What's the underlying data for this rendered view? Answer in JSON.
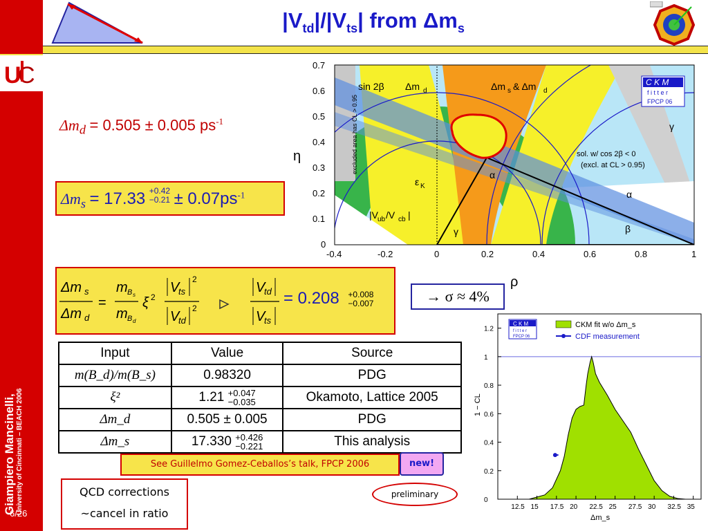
{
  "slide": {
    "title_main": "|V",
    "title_td": "td",
    "title_mid": "|/|V",
    "title_ts": "ts",
    "title_end": "| from Δm",
    "title_s": "s",
    "author": "Giampiero Mancinelli,",
    "affiliation": "University of Cincinnati – BEACH 2006",
    "page": "6/26"
  },
  "equations": {
    "dmd_label": "Δm",
    "dmd_sub": "d",
    "dmd_value": "= 0.505 ± 0.005 ps",
    "dmd_exp": "-1",
    "dms_label": "Δm",
    "dms_sub": "s",
    "dms_value_a": "= 17.33",
    "dms_plus": "+0.42",
    "dms_minus": "−0.21",
    "dms_value_b": "± 0.07ps",
    "dms_exp": "-1",
    "ratio_result": "= 0.208",
    "ratio_plus": "+0.008",
    "ratio_minus": "−0.007",
    "sigma": "→ σ ≈ 4%"
  },
  "table": {
    "headers": [
      "Input",
      "Value",
      "Source"
    ],
    "rows": [
      {
        "input": "m(B_d)/m(B_s)",
        "value": "0.98320",
        "plus": "",
        "minus": "",
        "source": "PDG"
      },
      {
        "input": "ξ²",
        "value": "1.21",
        "plus": "+0.047",
        "minus": "−0.035",
        "source": "Okamoto, Lattice 2005"
      },
      {
        "input": "Δm_d",
        "value": "0.505 ± 0.005",
        "plus": "",
        "minus": "",
        "source": "PDG"
      },
      {
        "input": "Δm_s",
        "value": "17.330",
        "plus": "+0.426",
        "minus": "−0.221",
        "source": "This analysis"
      }
    ]
  },
  "notes": {
    "talk": "See Guillelmo Gomez-Ceballos’s talk, FPCP 2006",
    "new": "new!",
    "preliminary": "preliminary",
    "qcd_line1": "QCD corrections",
    "qcd_line2": "~cancel in ratio"
  },
  "ckm_plot": {
    "ylabel": "η",
    "xlabel": "ρ",
    "labels": {
      "sin2b": "sin 2β",
      "dmd": "Δm",
      "dmd_sub": "d",
      "dmsdmd": "Δm",
      "dmsdmd_s": "s",
      "dmsdmd_amp": "& Δm",
      "dmsdmd_d": "d",
      "epsk": "ε",
      "epsk_sub": "K",
      "vub": "|V",
      "vub_sub": "ub",
      "vub_mid": "/V",
      "vcb_sub": "cb",
      "vub_end": "|",
      "alpha": "α",
      "beta": "β",
      "gamma": "γ",
      "sol": "sol. w/ cos 2β < 0",
      "excl_at": "(excl. at CL > 0.95)",
      "excluded": "excluded area has CL > 0.95",
      "ckm_logo": "C K M",
      "fitter": "f i t t e r",
      "fpcp": "FPCP 06"
    },
    "xticks": [
      "-0.4",
      "-0.2",
      "0",
      "0.2",
      "0.4",
      "0.6",
      "0.8",
      "1"
    ],
    "yticks": [
      "0",
      "0.1",
      "0.2",
      "0.3",
      "0.4",
      "0.5",
      "0.6",
      "0.7"
    ]
  },
  "chart_data": {
    "type": "area",
    "title": "",
    "xlabel": "Δm_s",
    "ylabel": "1 − CL",
    "xlim": [
      10,
      36
    ],
    "ylim": [
      0,
      1.3
    ],
    "xticks": [
      "12.5",
      "15",
      "17.5",
      "20",
      "22.5",
      "25",
      "27.5",
      "30",
      "32.5",
      "35"
    ],
    "yticks": [
      "0",
      "0.2",
      "0.4",
      "0.6",
      "0.8",
      "1",
      "1.2"
    ],
    "legend": [
      "CKM fit w/o Δm_s",
      "CDF measurement"
    ],
    "legend_logo": "C K M",
    "legend_fitter": "f i t t e r",
    "legend_fpcp": "FPCP 06",
    "series": [
      {
        "name": "CKM fit w/o Δm_s",
        "color": "#a0e000",
        "x": [
          14,
          16,
          17,
          18,
          18.5,
          19,
          19.5,
          20,
          20.5,
          21,
          21.3,
          21.5,
          21.8,
          22,
          22.2,
          22.5,
          23,
          24,
          25,
          26,
          27,
          28,
          29,
          30,
          31,
          32,
          33,
          34
        ],
        "y": [
          0,
          0.03,
          0.08,
          0.2,
          0.3,
          0.45,
          0.57,
          0.63,
          0.65,
          0.66,
          0.8,
          0.88,
          0.96,
          1.0,
          0.96,
          0.88,
          0.82,
          0.73,
          0.63,
          0.55,
          0.47,
          0.35,
          0.24,
          0.13,
          0.06,
          0.02,
          0.005,
          0
        ]
      },
      {
        "name": "CDF measurement",
        "color": "#1a1ac8",
        "x": [
          17.33
        ],
        "y": [
          0.31
        ],
        "xerr_minus": 0.21,
        "xerr_plus": 0.42
      }
    ],
    "reference_line": 1
  }
}
